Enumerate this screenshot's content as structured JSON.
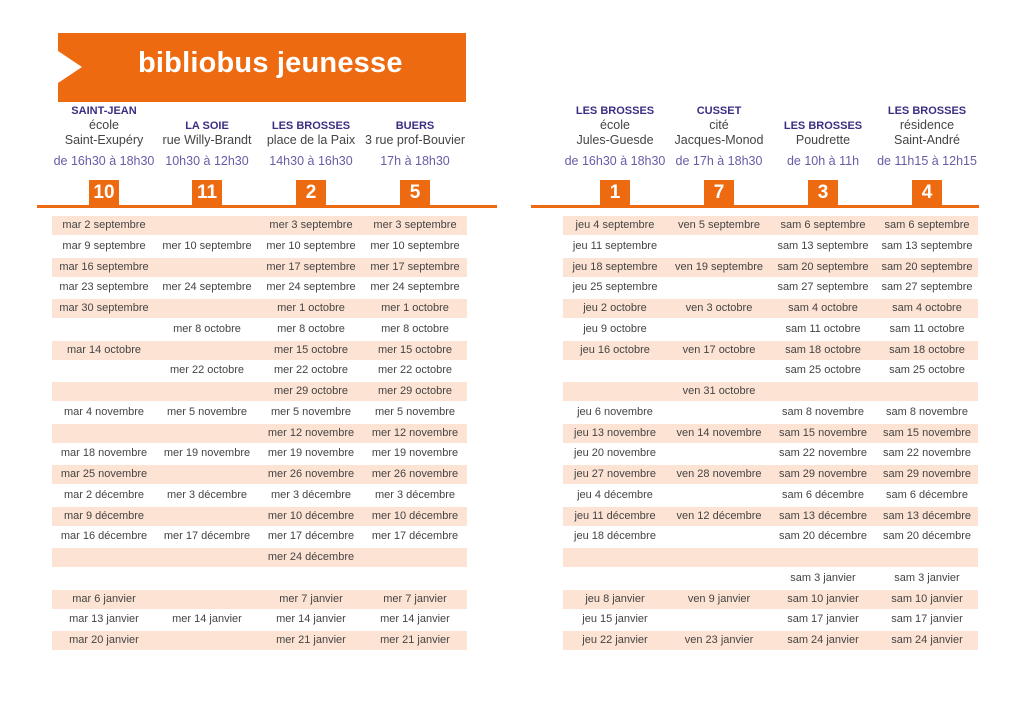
{
  "title": "bibliobus jeunesse",
  "left": {
    "columns": [
      {
        "location": "SAINT-JEAN",
        "desc1": "école",
        "desc2": "Saint-Exupéry",
        "time": "de 16h30 à 18h30",
        "num": "10"
      },
      {
        "location": "LA SOIE",
        "desc1": "",
        "desc2": "rue Willy-Brandt",
        "time": "10h30 à 12h30",
        "num": "11"
      },
      {
        "location": "LES BROSSES",
        "desc1": "",
        "desc2": "place de la Paix",
        "time": "14h30 à 16h30",
        "num": "2"
      },
      {
        "location": "BUERS",
        "desc1": "",
        "desc2": "3 rue prof-Bouvier",
        "time": "17h à 18h30",
        "num": "5"
      }
    ],
    "rows": [
      [
        "mar 2 septembre",
        "",
        "mer 3 septembre",
        "mer 3 septembre"
      ],
      [
        "mar 9 septembre",
        "mer 10 septembre",
        "mer 10 septembre",
        "mer 10 septembre"
      ],
      [
        "mar 16 septembre",
        "",
        "mer 17 septembre",
        "mer 17 septembre"
      ],
      [
        "mar 23 septembre",
        "mer 24 septembre",
        "mer 24 septembre",
        "mer 24 septembre"
      ],
      [
        "mar 30 septembre",
        "",
        "mer 1 octobre",
        "mer 1 octobre"
      ],
      [
        "",
        "mer 8 octobre",
        "mer 8 octobre",
        "mer 8 octobre"
      ],
      [
        "mar 14 octobre",
        "",
        "mer 15 octobre",
        "mer 15 octobre"
      ],
      [
        "",
        "mer 22 octobre",
        "mer 22 octobre",
        "mer 22 octobre"
      ],
      [
        "",
        "",
        "mer 29 octobre",
        "mer 29 octobre"
      ],
      [
        "mar 4 novembre",
        "mer 5 novembre",
        "mer 5 novembre",
        "mer 5 novembre"
      ],
      [
        "",
        "",
        "mer 12 novembre",
        "mer 12 novembre"
      ],
      [
        "mar 18 novembre",
        "mer 19 novembre",
        "mer 19 novembre",
        "mer 19 novembre"
      ],
      [
        "mar 25 novembre",
        "",
        "mer 26 novembre",
        "mer 26 novembre"
      ],
      [
        "mar 2 décembre",
        "mer 3 décembre",
        "mer 3 décembre",
        "mer 3 décembre"
      ],
      [
        "mar 9 décembre",
        "",
        "mer 10 décembre",
        "mer 10 décembre"
      ],
      [
        "mar 16 décembre",
        "mer 17 décembre",
        "mer 17 décembre",
        "mer 17 décembre"
      ],
      [
        "",
        "",
        "mer 24 décembre",
        ""
      ],
      [
        "",
        "",
        "",
        ""
      ],
      [
        "mar 6 janvier",
        "",
        "mer 7 janvier",
        "mer 7 janvier"
      ],
      [
        "mar 13 janvier",
        "mer 14 janvier",
        "mer 14 janvier",
        "mer 14 janvier"
      ],
      [
        "mar 20 janvier",
        "",
        "mer 21 janvier",
        "mer 21 janvier"
      ]
    ]
  },
  "right": {
    "columns": [
      {
        "location": "LES BROSSES",
        "desc1": "école",
        "desc2": "Jules-Guesde",
        "time": "de 16h30 à 18h30",
        "num": "1"
      },
      {
        "location": "CUSSET",
        "desc1": "cité",
        "desc2": "Jacques-Monod",
        "time": "de 17h à 18h30",
        "num": "7"
      },
      {
        "location": "LES BROSSES",
        "desc1": "",
        "desc2": "Poudrette",
        "time": "de 10h à 11h",
        "num": "3"
      },
      {
        "location": "LES BROSSES",
        "desc1": "résidence",
        "desc2": "Saint-André",
        "time": "de 11h15 à 12h15",
        "num": "4"
      }
    ],
    "rows": [
      [
        "jeu 4 septembre",
        "ven 5 septembre",
        "sam 6 septembre",
        "sam 6 septembre"
      ],
      [
        "jeu 11 septembre",
        "",
        "sam 13 septembre",
        "sam 13 septembre"
      ],
      [
        "jeu 18 septembre",
        "ven 19 septembre",
        "sam 20 septembre",
        "sam 20 septembre"
      ],
      [
        "jeu 25 septembre",
        "",
        "sam 27 septembre",
        "sam 27 septembre"
      ],
      [
        "jeu 2 octobre",
        "ven 3 octobre",
        "sam 4 octobre",
        "sam 4 octobre"
      ],
      [
        "jeu 9 octobre",
        "",
        "sam 11 octobre",
        "sam 11 octobre"
      ],
      [
        "jeu 16 octobre",
        "ven 17 octobre",
        "sam 18 octobre",
        "sam 18 octobre"
      ],
      [
        "",
        "",
        "sam 25 octobre",
        "sam 25 octobre"
      ],
      [
        "",
        "ven 31 octobre",
        "",
        ""
      ],
      [
        "jeu 6 novembre",
        "",
        "sam 8 novembre",
        "sam 8 novembre"
      ],
      [
        "jeu 13 novembre",
        "ven 14 novembre",
        "sam 15 novembre",
        "sam 15 novembre"
      ],
      [
        "jeu 20 novembre",
        "",
        "sam 22 novembre",
        "sam 22 novembre"
      ],
      [
        "jeu 27 novembre",
        "ven 28 novembre",
        "sam 29 novembre",
        "sam 29 novembre"
      ],
      [
        "jeu 4 décembre",
        "",
        "sam 6 décembre",
        "sam 6 décembre"
      ],
      [
        "jeu 11 décembre",
        "ven 12 décembre",
        "sam 13 décembre",
        "sam 13 décembre"
      ],
      [
        "jeu 18 décembre",
        "",
        "sam 20 décembre",
        "sam 20 décembre"
      ],
      [
        "",
        "",
        "",
        ""
      ],
      [
        "",
        "",
        "sam 3 janvier",
        "sam 3 janvier"
      ],
      [
        "jeu 8 janvier",
        "ven 9 janvier",
        "sam 10 janvier",
        "sam 10 janvier"
      ],
      [
        "jeu 15 janvier",
        "",
        "sam 17 janvier",
        "sam 17 janvier"
      ],
      [
        "jeu 22 janvier",
        "ven 23 janvier",
        "sam 24 janvier",
        "sam 24 janvier"
      ]
    ]
  },
  "colors": {
    "accent": "#ee6a10",
    "shade": "#fde3d3",
    "location": "#3c2e82",
    "time": "#6a5ba8"
  }
}
